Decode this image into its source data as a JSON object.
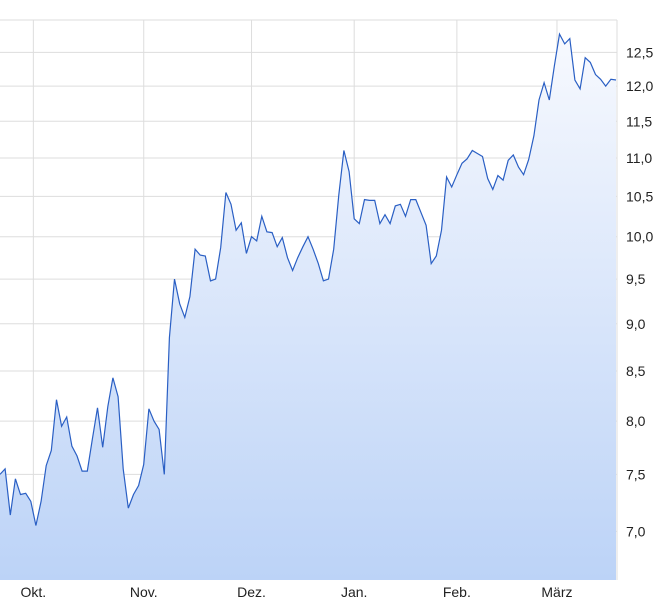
{
  "chart_data": {
    "type": "area",
    "title": "",
    "xlabel": "",
    "ylabel": "",
    "y_scale": "log",
    "ylim": [
      6.6,
      13.0
    ],
    "grid": true,
    "legend": "none",
    "y_axis_side": "right",
    "colors": {
      "line": "#2a5fc4",
      "fill_top": "#f7f9fe",
      "fill_bottom": "#bcd3f7",
      "grid": "#dddddd"
    },
    "y_ticks": [
      {
        "value": 7.0,
        "label": "7,0"
      },
      {
        "value": 7.5,
        "label": "7,5"
      },
      {
        "value": 8.0,
        "label": "8,0"
      },
      {
        "value": 8.5,
        "label": "8,5"
      },
      {
        "value": 9.0,
        "label": "9,0"
      },
      {
        "value": 9.5,
        "label": "9,5"
      },
      {
        "value": 10.0,
        "label": "10,0"
      },
      {
        "value": 10.5,
        "label": "10,5"
      },
      {
        "value": 11.0,
        "label": "11,0"
      },
      {
        "value": 11.5,
        "label": "11,5"
      },
      {
        "value": 12.0,
        "label": "12,0"
      },
      {
        "value": 12.5,
        "label": "12,5"
      }
    ],
    "x_ticks": [
      {
        "index": 6.5,
        "label": "Okt."
      },
      {
        "index": 28,
        "label": "Nov."
      },
      {
        "index": 49,
        "label": "Dez."
      },
      {
        "index": 69,
        "label": "Jan."
      },
      {
        "index": 89,
        "label": "Feb."
      },
      {
        "index": 108.5,
        "label": "März"
      }
    ],
    "values": [
      7.5,
      7.55,
      7.14,
      7.46,
      7.32,
      7.33,
      7.26,
      7.05,
      7.26,
      7.58,
      7.72,
      8.21,
      7.95,
      8.04,
      7.76,
      7.67,
      7.53,
      7.53,
      7.83,
      8.13,
      7.75,
      8.14,
      8.43,
      8.24,
      7.55,
      7.2,
      7.32,
      7.4,
      7.59,
      8.12,
      8.0,
      7.92,
      7.5,
      8.85,
      9.5,
      9.22,
      9.07,
      9.3,
      9.85,
      9.78,
      9.77,
      9.48,
      9.5,
      9.87,
      10.55,
      10.4,
      10.08,
      10.17,
      9.8,
      10.0,
      9.95,
      10.25,
      10.06,
      10.05,
      9.88,
      9.99,
      9.75,
      9.6,
      9.75,
      9.88,
      10.0,
      9.85,
      9.68,
      9.48,
      9.5,
      9.85,
      10.52,
      11.1,
      10.82,
      10.22,
      10.16,
      10.46,
      10.45,
      10.45,
      10.16,
      10.27,
      10.16,
      10.38,
      10.4,
      10.25,
      10.46,
      10.46,
      10.3,
      10.14,
      9.68,
      9.77,
      10.08,
      10.75,
      10.62,
      10.78,
      10.93,
      10.99,
      11.1,
      11.06,
      11.02,
      10.73,
      10.59,
      10.77,
      10.71,
      10.97,
      11.04,
      10.88,
      10.78,
      10.98,
      11.3,
      11.8,
      12.05,
      11.8,
      12.3,
      12.78,
      12.63,
      12.71,
      12.09,
      11.96,
      12.42,
      12.35,
      12.17,
      12.1,
      12.0,
      12.1,
      12.09
    ]
  }
}
